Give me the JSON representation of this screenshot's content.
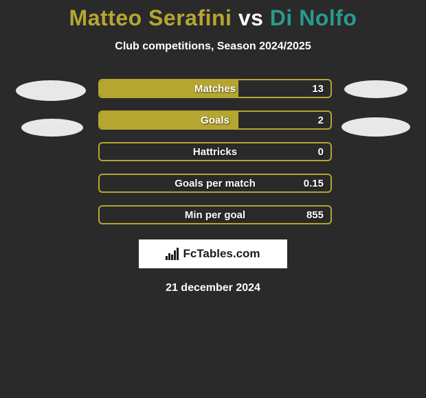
{
  "title": {
    "player1": "Matteo Serafini",
    "vs": "vs",
    "player2": "Di Nolfo",
    "player1_color": "#b5a632",
    "vs_color": "#ffffff",
    "player2_color": "#2a9a8f"
  },
  "subtitle": "Club competitions, Season 2024/2025",
  "bars": [
    {
      "label": "Matches",
      "value": "13",
      "fill_pct": 60,
      "fill_color": "#b5a632",
      "border_color": "#b5a632"
    },
    {
      "label": "Goals",
      "value": "2",
      "fill_pct": 60,
      "fill_color": "#b5a632",
      "border_color": "#b5a632"
    },
    {
      "label": "Hattricks",
      "value": "0",
      "fill_pct": 0,
      "fill_color": "#b5a632",
      "border_color": "#b5a632"
    },
    {
      "label": "Goals per match",
      "value": "0.15",
      "fill_pct": 0,
      "fill_color": "#b5a632",
      "border_color": "#b5a632"
    },
    {
      "label": "Min per goal",
      "value": "855",
      "fill_pct": 0,
      "fill_color": "#b5a632",
      "border_color": "#b5a632"
    }
  ],
  "brand": "FcTables.com",
  "date": "21 december 2024",
  "colors": {
    "background": "#2a2a2a",
    "text": "#ffffff",
    "avatar": "#e8e8e8",
    "brand_bg": "#ffffff",
    "brand_text": "#1a1a1a"
  }
}
